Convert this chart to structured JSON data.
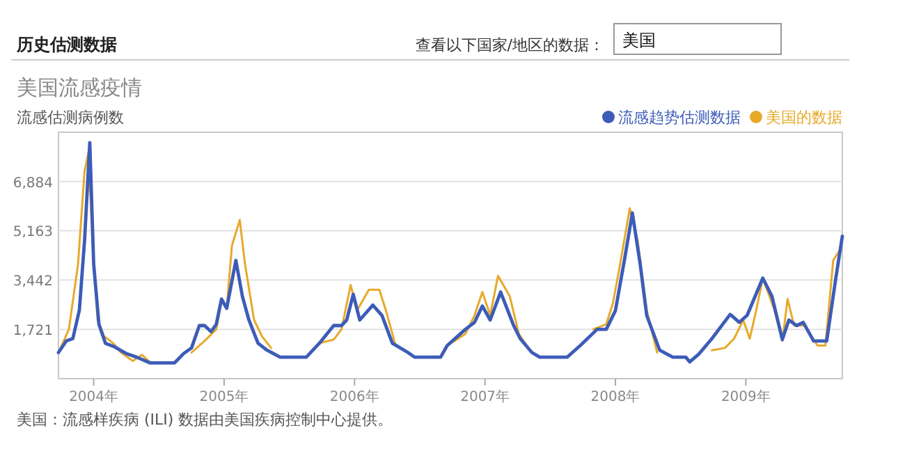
{
  "chart_data": {
    "type": "line",
    "title": "美国流感疫情",
    "ylabel": "流感估测病例数",
    "annotations": [
      "历史估测数据",
      "查看以下国家/地区的数据：",
      "美国",
      "美国：流感样疾病 (ILI) 数据由美国疾病控制中心提供。"
    ],
    "xlim": [
      2003.73,
      2009.74
    ],
    "ylim": [
      0,
      8600
    ],
    "xticks": [
      {
        "value": 2004,
        "label": "2004年"
      },
      {
        "value": 2005,
        "label": "2005年"
      },
      {
        "value": 2006,
        "label": "2006年"
      },
      {
        "value": 2007,
        "label": "2007年"
      },
      {
        "value": 2008,
        "label": "2008年"
      },
      {
        "value": 2009,
        "label": "2009年"
      }
    ],
    "yticks": [
      {
        "value": 1721,
        "label": "1,721"
      },
      {
        "value": 3442,
        "label": "3,442"
      },
      {
        "value": 5163,
        "label": "5,163"
      },
      {
        "value": 6884,
        "label": "6,884"
      }
    ],
    "grid": "y",
    "legend": "top right",
    "marker": "none",
    "line_style": "solid",
    "series": [
      {
        "name": "流感趋势估测数据",
        "color": "#3d5cb8",
        "x": [
          2003.73,
          2003.79,
          2003.84,
          2003.89,
          2003.93,
          2003.97,
          2004.0,
          2004.04,
          2004.09,
          2004.16,
          2004.25,
          2004.33,
          2004.43,
          2004.62,
          2004.69,
          2004.75,
          2004.81,
          2004.85,
          2004.9,
          2004.94,
          2004.98,
          2005.02,
          2005.09,
          2005.14,
          2005.19,
          2005.26,
          2005.33,
          2005.43,
          2005.63,
          2005.73,
          2005.84,
          2005.9,
          2005.94,
          2005.99,
          2006.04,
          2006.14,
          2006.21,
          2006.29,
          2006.41,
          2006.46,
          2006.66,
          2006.71,
          2006.85,
          2006.92,
          2006.98,
          2007.04,
          2007.12,
          2007.22,
          2007.27,
          2007.36,
          2007.42,
          2007.63,
          2007.73,
          2007.86,
          2007.93,
          2008.0,
          2008.07,
          2008.13,
          2008.19,
          2008.24,
          2008.34,
          2008.44,
          2008.54,
          2008.57,
          2008.64,
          2008.74,
          2008.88,
          2008.95,
          2009.01,
          2009.13,
          2009.2,
          2009.28,
          2009.33,
          2009.39,
          2009.44,
          2009.52,
          2009.62,
          2009.69,
          2009.74
        ],
        "values": [
          911,
          1316,
          1397,
          2388,
          4826,
          8239,
          3998,
          1900,
          1235,
          1110,
          877,
          750,
          552,
          552,
          877,
          1072,
          1852,
          1852,
          1641,
          1900,
          2779,
          2454,
          4127,
          2876,
          2047,
          1235,
          990,
          750,
          750,
          1235,
          1852,
          1852,
          2047,
          2941,
          2047,
          2568,
          2210,
          1235,
          911,
          750,
          750,
          1153,
          1722,
          1966,
          2535,
          2047,
          3023,
          1852,
          1397,
          911,
          750,
          750,
          1153,
          1722,
          1722,
          2373,
          4160,
          5785,
          3998,
          2210,
          990,
          750,
          750,
          585,
          860,
          1397,
          2243,
          1966,
          2210,
          3510,
          2876,
          1365,
          2047,
          1852,
          1966,
          1316,
          1316,
          3510,
          4973
        ]
      },
      {
        "name": "美国的数据",
        "color": "#e8a92a",
        "x": [
          2003.73,
          2003.81,
          2003.88,
          2003.93,
          2003.96,
          2003.99,
          2004.03,
          2004.08,
          2004.15,
          2004.21,
          2004.3,
          2004.37,
          2004.43,
          null,
          2004.75,
          2004.85,
          2004.94,
          2004.98,
          2005.02,
          2005.06,
          2005.12,
          2005.16,
          2005.23,
          2005.29,
          2005.36,
          null,
          2005.73,
          2005.84,
          2005.9,
          2005.97,
          2006.02,
          2006.11,
          2006.19,
          2006.24,
          2006.31,
          null,
          2006.71,
          2006.85,
          2006.92,
          2006.98,
          2007.04,
          2007.1,
          2007.19,
          2007.26,
          2007.32,
          null,
          2007.83,
          2007.93,
          2007.98,
          2008.03,
          2008.11,
          2008.17,
          2008.24,
          2008.32,
          null,
          2008.74,
          2008.84,
          2008.91,
          2008.98,
          2009.03,
          2009.08,
          2009.13,
          2009.22,
          2009.28,
          2009.32,
          2009.37,
          2009.45,
          2009.55,
          2009.61,
          2009.67,
          2009.72
        ],
        "values": [
          911,
          1722,
          3998,
          7247,
          7898,
          4826,
          2047,
          1479,
          1235,
          911,
          617,
          830,
          585,
          null,
          911,
          1316,
          1722,
          2698,
          2454,
          4647,
          5541,
          3998,
          2047,
          1479,
          1072,
          null,
          1235,
          1365,
          1722,
          3266,
          2388,
          3103,
          3103,
          2388,
          1235,
          null,
          1153,
          1560,
          2210,
          3023,
          2210,
          3591,
          2876,
          1560,
          1153,
          null,
          1722,
          1900,
          2617,
          3836,
          5948,
          4826,
          2388,
          911,
          null,
          990,
          1072,
          1397,
          2047,
          1397,
          2388,
          3510,
          2388,
          1316,
          2779,
          1852,
          1852,
          1153,
          1153,
          4127,
          4485
        ]
      }
    ]
  }
}
